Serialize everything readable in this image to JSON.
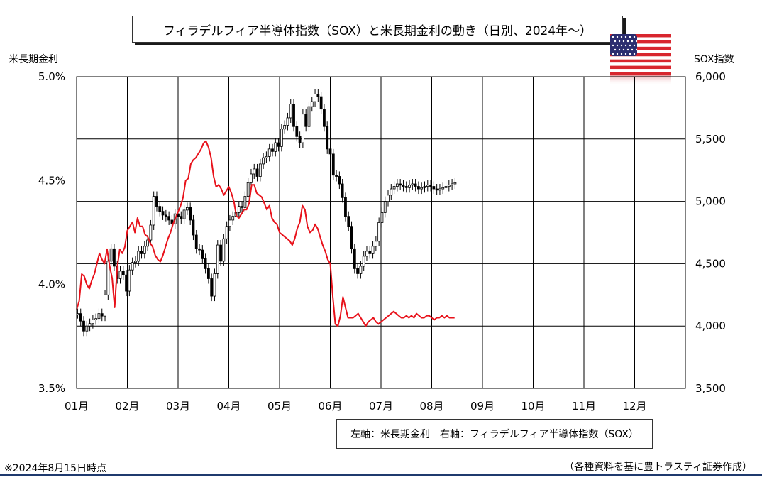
{
  "title": "フィラデルフィア半導体指数（SOX）と米長期金利の動き（日別、2024年～）",
  "left_axis_title": "米長期金利",
  "right_axis_title": "SOX指数",
  "legend_text": "左軸：米長期金利　右軸：フィラデルフィア半導体指数（SOX）",
  "note_left": "※2024年8月15日時点",
  "note_right": "（各種資料を基に豊トラスティ証券作成）",
  "colors": {
    "rate_line": "#e8121b",
    "candle": "#000000",
    "footer": "#1f3a6e"
  },
  "icons": {
    "flag": "us-flag-icon"
  },
  "chart_data": {
    "type": "line",
    "x_categories": [
      "01月",
      "02月",
      "03月",
      "04月",
      "05月",
      "06月",
      "07月",
      "08月",
      "09月",
      "10月",
      "11月",
      "12月"
    ],
    "left_axis": {
      "label": "米長期金利",
      "ylim": [
        3.5,
        5.0
      ],
      "ticks": [
        "5.0%",
        "4.5%",
        "4.0%",
        "3.5%"
      ],
      "tick_values": [
        5.0,
        4.5,
        4.0,
        3.5
      ]
    },
    "right_axis": {
      "label": "SOX指数",
      "ylim": [
        3500,
        6000
      ],
      "ticks": [
        "6,000",
        "5,500",
        "5,000",
        "4,500",
        "4,000",
        "3,500"
      ],
      "tick_values": [
        6000,
        5500,
        5000,
        4500,
        4000,
        3500
      ]
    },
    "grid": true,
    "series": [
      {
        "name": "米長期金利",
        "axis": "left",
        "style": "line",
        "x": [
          0.0,
          0.05,
          0.1,
          0.15,
          0.2,
          0.25,
          0.3,
          0.35,
          0.4,
          0.45,
          0.5,
          0.55,
          0.6,
          0.65,
          0.7,
          0.75,
          0.8,
          0.85,
          0.9,
          0.95,
          1.0,
          1.05,
          1.1,
          1.15,
          1.2,
          1.25,
          1.3,
          1.35,
          1.4,
          1.45,
          1.5,
          1.55,
          1.6,
          1.65,
          1.7,
          1.75,
          1.8,
          1.85,
          1.9,
          1.95,
          2.0,
          2.05,
          2.1,
          2.15,
          2.2,
          2.25,
          2.3,
          2.35,
          2.4,
          2.45,
          2.5,
          2.55,
          2.6,
          2.65,
          2.7,
          2.75,
          2.8,
          2.85,
          2.9,
          2.95,
          3.0,
          3.05,
          3.1,
          3.15,
          3.2,
          3.25,
          3.3,
          3.35,
          3.4,
          3.45,
          3.5,
          3.55,
          3.6,
          3.65,
          3.7,
          3.75,
          3.8,
          3.85,
          3.9,
          3.95,
          4.0,
          4.05,
          4.1,
          4.15,
          4.2,
          4.25,
          4.3,
          4.35,
          4.4,
          4.45,
          4.5,
          4.55,
          4.6,
          4.65,
          4.7,
          4.75,
          4.8,
          4.85,
          4.9,
          4.95,
          5.0,
          5.05,
          5.1,
          5.15,
          5.2,
          5.25,
          5.3,
          5.35,
          5.4,
          5.45,
          5.5,
          5.55,
          5.6,
          5.65,
          5.7,
          5.75,
          5.8,
          5.85,
          5.9,
          5.95,
          6.0,
          6.05,
          6.1,
          6.15,
          6.2,
          6.25,
          6.3,
          6.35,
          6.4,
          6.45,
          6.5,
          6.55,
          6.6,
          6.65,
          6.7,
          6.75,
          6.8,
          6.85,
          6.9,
          6.95,
          7.0,
          7.05,
          7.1,
          7.15,
          7.2,
          7.25,
          7.3,
          7.35,
          7.4,
          7.45
        ],
        "values": [
          3.88,
          3.92,
          4.05,
          4.04,
          4.0,
          3.98,
          4.02,
          4.05,
          4.1,
          4.15,
          4.12,
          4.1,
          4.17,
          4.09,
          4.03,
          3.89,
          4.08,
          4.17,
          4.15,
          4.18,
          4.26,
          4.28,
          4.3,
          4.25,
          4.32,
          4.28,
          4.28,
          4.24,
          4.23,
          4.2,
          4.18,
          4.14,
          4.12,
          4.11,
          4.14,
          4.18,
          4.22,
          4.25,
          4.29,
          4.32,
          4.35,
          4.38,
          4.42,
          4.5,
          4.51,
          4.58,
          4.6,
          4.61,
          4.63,
          4.65,
          4.68,
          4.69,
          4.66,
          4.61,
          4.52,
          4.47,
          4.48,
          4.46,
          4.43,
          4.45,
          4.47,
          4.44,
          4.4,
          4.33,
          4.32,
          4.34,
          4.36,
          4.36,
          4.39,
          4.48,
          4.48,
          4.44,
          4.43,
          4.42,
          4.39,
          4.36,
          4.38,
          4.32,
          4.3,
          4.29,
          4.25,
          4.24,
          4.23,
          4.22,
          4.21,
          4.19,
          4.22,
          4.27,
          4.3,
          4.38,
          4.36,
          4.28,
          4.25,
          4.26,
          4.29,
          4.27,
          4.23,
          4.19,
          4.16,
          4.12,
          4.1,
          3.94,
          3.81,
          3.8,
          3.85,
          3.94,
          3.89,
          3.84,
          3.84,
          3.84,
          3.85,
          3.86,
          3.84,
          3.82,
          3.8,
          3.82,
          3.83,
          3.84,
          3.82,
          3.81,
          3.82,
          3.83,
          3.84,
          3.85,
          3.86,
          3.87,
          3.86,
          3.85,
          3.84,
          3.84,
          3.85,
          3.84,
          3.85,
          3.84,
          3.86,
          3.85,
          3.84,
          3.84,
          3.85,
          3.85,
          3.84,
          3.83,
          3.84,
          3.84,
          3.85,
          3.84,
          3.85,
          3.84,
          3.84,
          3.84
        ]
      },
      {
        "name": "フィラデルフィア半導体指数（SOX）",
        "axis": "right",
        "style": "candlestick",
        "x": [
          0.02,
          0.08,
          0.14,
          0.2,
          0.26,
          0.32,
          0.38,
          0.44,
          0.5,
          0.56,
          0.62,
          0.68,
          0.74,
          0.8,
          0.86,
          0.92,
          0.98,
          1.04,
          1.1,
          1.16,
          1.22,
          1.28,
          1.34,
          1.4,
          1.46,
          1.52,
          1.58,
          1.64,
          1.7,
          1.76,
          1.82,
          1.88,
          1.94,
          2.0,
          2.06,
          2.12,
          2.18,
          2.24,
          2.3,
          2.36,
          2.42,
          2.48,
          2.54,
          2.6,
          2.66,
          2.72,
          2.78,
          2.84,
          2.9,
          2.96,
          3.02,
          3.08,
          3.14,
          3.2,
          3.26,
          3.32,
          3.38,
          3.44,
          3.5,
          3.56,
          3.62,
          3.68,
          3.74,
          3.8,
          3.86,
          3.92,
          3.98,
          4.04,
          4.1,
          4.16,
          4.22,
          4.28,
          4.34,
          4.4,
          4.46,
          4.52,
          4.58,
          4.64,
          4.7,
          4.76,
          4.82,
          4.88,
          4.94,
          5.0,
          5.06,
          5.12,
          5.18,
          5.24,
          5.3,
          5.36,
          5.42,
          5.48,
          5.54,
          5.6,
          5.66,
          5.72,
          5.78,
          5.84,
          5.9,
          5.96,
          6.02,
          6.08,
          6.14,
          6.2,
          6.26,
          6.32,
          6.38,
          6.44,
          6.5,
          6.56,
          6.62,
          6.68,
          6.74,
          6.8,
          6.86,
          6.92,
          6.98,
          7.04,
          7.1,
          7.16,
          7.22,
          7.28,
          7.34,
          7.4,
          7.46
        ],
        "values": [
          4100,
          4040,
          3960,
          4000,
          4020,
          4050,
          4060,
          4100,
          4080,
          4250,
          4520,
          4620,
          4480,
          4380,
          4440,
          4410,
          4280,
          4450,
          4510,
          4520,
          4600,
          4580,
          4640,
          4690,
          4810,
          5040,
          4960,
          4920,
          4890,
          4880,
          4850,
          4820,
          4900,
          4880,
          4860,
          4930,
          4950,
          4850,
          4730,
          4620,
          4610,
          4540,
          4460,
          4380,
          4240,
          4420,
          4650,
          4520,
          4700,
          4800,
          4850,
          4880,
          4910,
          4960,
          4950,
          5040,
          5150,
          5220,
          5260,
          5200,
          5300,
          5350,
          5360,
          5420,
          5400,
          5470,
          5440,
          5580,
          5610,
          5670,
          5780,
          5600,
          5520,
          5470,
          5700,
          5600,
          5760,
          5800,
          5860,
          5840,
          5740,
          5600,
          5420,
          5380,
          5210,
          5200,
          5140,
          5030,
          4880,
          4800,
          4620,
          4460,
          4420,
          4480,
          4560,
          4600,
          4580,
          4640,
          4680,
          4830,
          4910,
          5000,
          5050,
          5100,
          5120,
          5140,
          5130,
          5120,
          5110,
          5130,
          5140,
          5120,
          5100,
          5110,
          5120,
          5130,
          5120,
          5100,
          5090,
          5100,
          5110,
          5120,
          5130,
          5140,
          5150
        ]
      }
    ],
    "legend": "bottom-center"
  }
}
